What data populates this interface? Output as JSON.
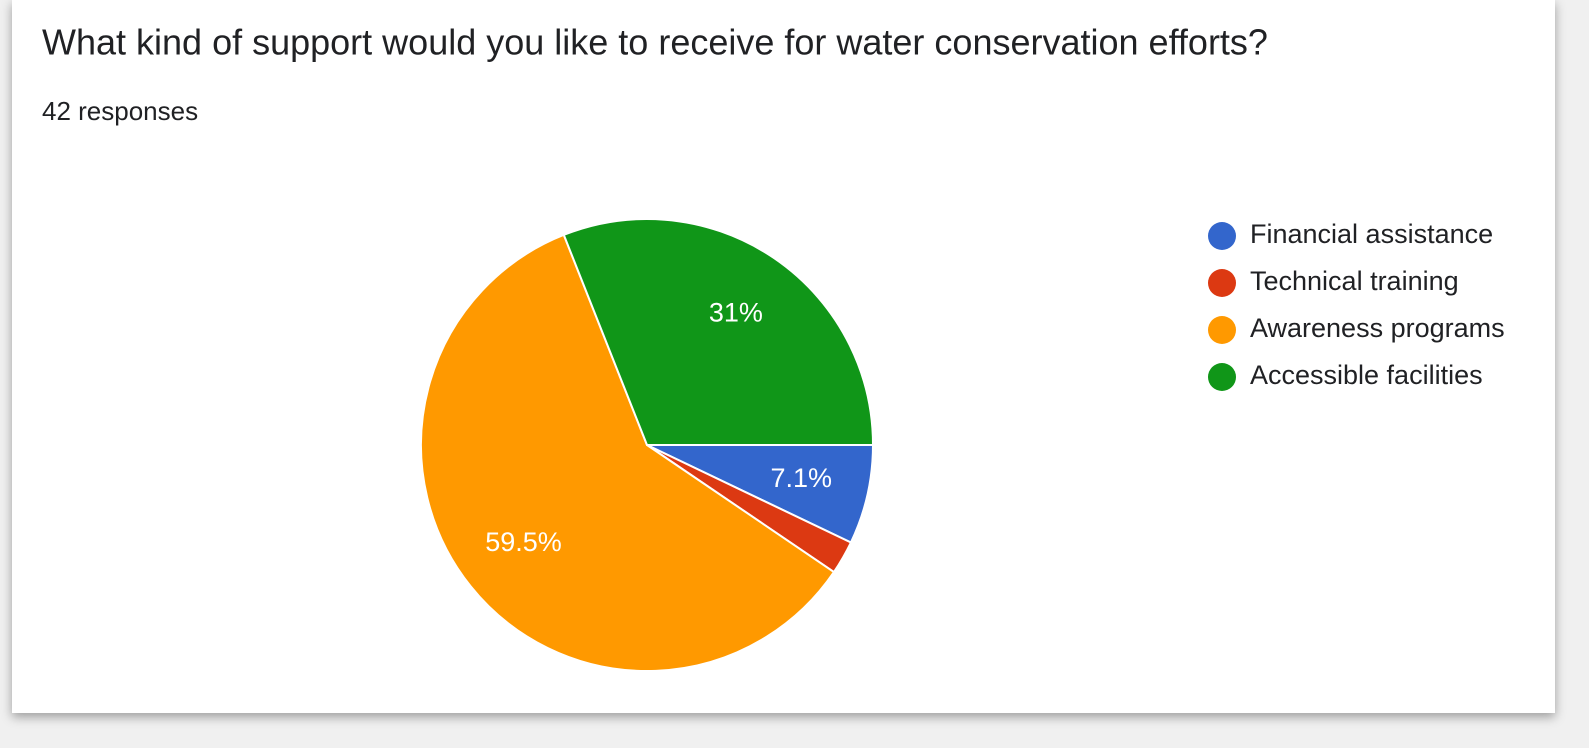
{
  "chart_data": {
    "type": "pie",
    "title": "What kind of support would you like to receive for water conservation efforts?",
    "subtitle": "42 responses",
    "categories": [
      "Financial assistance",
      "Technical training",
      "Awareness programs",
      "Accessible facilities"
    ],
    "values": [
      7.1,
      2.4,
      59.5,
      31
    ],
    "value_labels": [
      "7.1%",
      null,
      "59.5%",
      "31%"
    ],
    "colors": [
      "#3366cc",
      "#dc3912",
      "#ff9900",
      "#109618"
    ],
    "legend": "right"
  }
}
